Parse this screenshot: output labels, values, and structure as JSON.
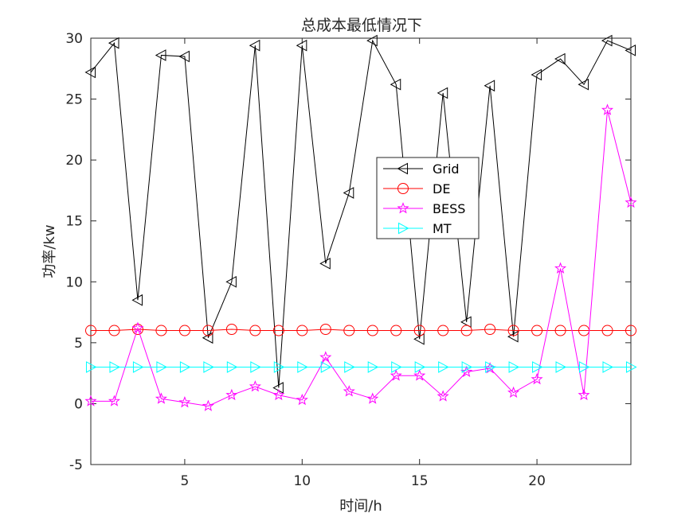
{
  "chart_data": {
    "type": "line",
    "title": "总成本最低情况下",
    "xlabel": "时间/h",
    "ylabel": "功率/kw",
    "xlim": [
      1,
      24
    ],
    "ylim": [
      -5,
      30
    ],
    "xticks": [
      5,
      10,
      15,
      20
    ],
    "yticks": [
      -5,
      0,
      5,
      10,
      15,
      20,
      25,
      30
    ],
    "grid": false,
    "legend_position": "center-right",
    "x": [
      1,
      2,
      3,
      4,
      5,
      6,
      7,
      8,
      9,
      10,
      11,
      12,
      13,
      14,
      15,
      16,
      17,
      18,
      19,
      20,
      21,
      22,
      23,
      24
    ],
    "series": [
      {
        "name": "Grid",
        "color": "#000000",
        "marker": "triangle-left",
        "values": [
          27.2,
          29.6,
          8.5,
          28.6,
          28.5,
          5.4,
          10.0,
          29.4,
          1.3,
          29.4,
          11.5,
          17.3,
          29.8,
          26.2,
          5.3,
          25.5,
          6.7,
          26.1,
          5.5,
          27.0,
          28.3,
          26.2,
          29.8,
          29.0
        ]
      },
      {
        "name": "DE",
        "color": "#ff0000",
        "marker": "circle",
        "values": [
          6.0,
          6.0,
          6.1,
          6.0,
          6.0,
          6.0,
          6.1,
          6.0,
          6.0,
          6.0,
          6.1,
          6.0,
          6.0,
          6.0,
          6.0,
          6.0,
          6.0,
          6.1,
          6.0,
          6.0,
          6.0,
          6.0,
          6.0,
          6.0
        ]
      },
      {
        "name": "BESS",
        "color": "#ff00ff",
        "marker": "pentagram",
        "values": [
          0.2,
          0.2,
          6.2,
          0.4,
          0.1,
          -0.2,
          0.7,
          1.4,
          0.7,
          0.3,
          3.8,
          1.0,
          0.4,
          2.3,
          2.3,
          0.6,
          2.6,
          2.9,
          0.9,
          2.0,
          11.1,
          0.7,
          24.1,
          16.5
        ]
      },
      {
        "name": "MT",
        "color": "#00ffff",
        "marker": "triangle-right",
        "values": [
          3.0,
          3.0,
          3.0,
          3.0,
          3.0,
          3.0,
          3.0,
          3.0,
          3.0,
          3.0,
          3.0,
          3.0,
          3.0,
          3.0,
          3.0,
          3.0,
          3.0,
          3.0,
          3.0,
          3.0,
          3.0,
          3.0,
          3.0,
          3.0
        ]
      }
    ]
  }
}
